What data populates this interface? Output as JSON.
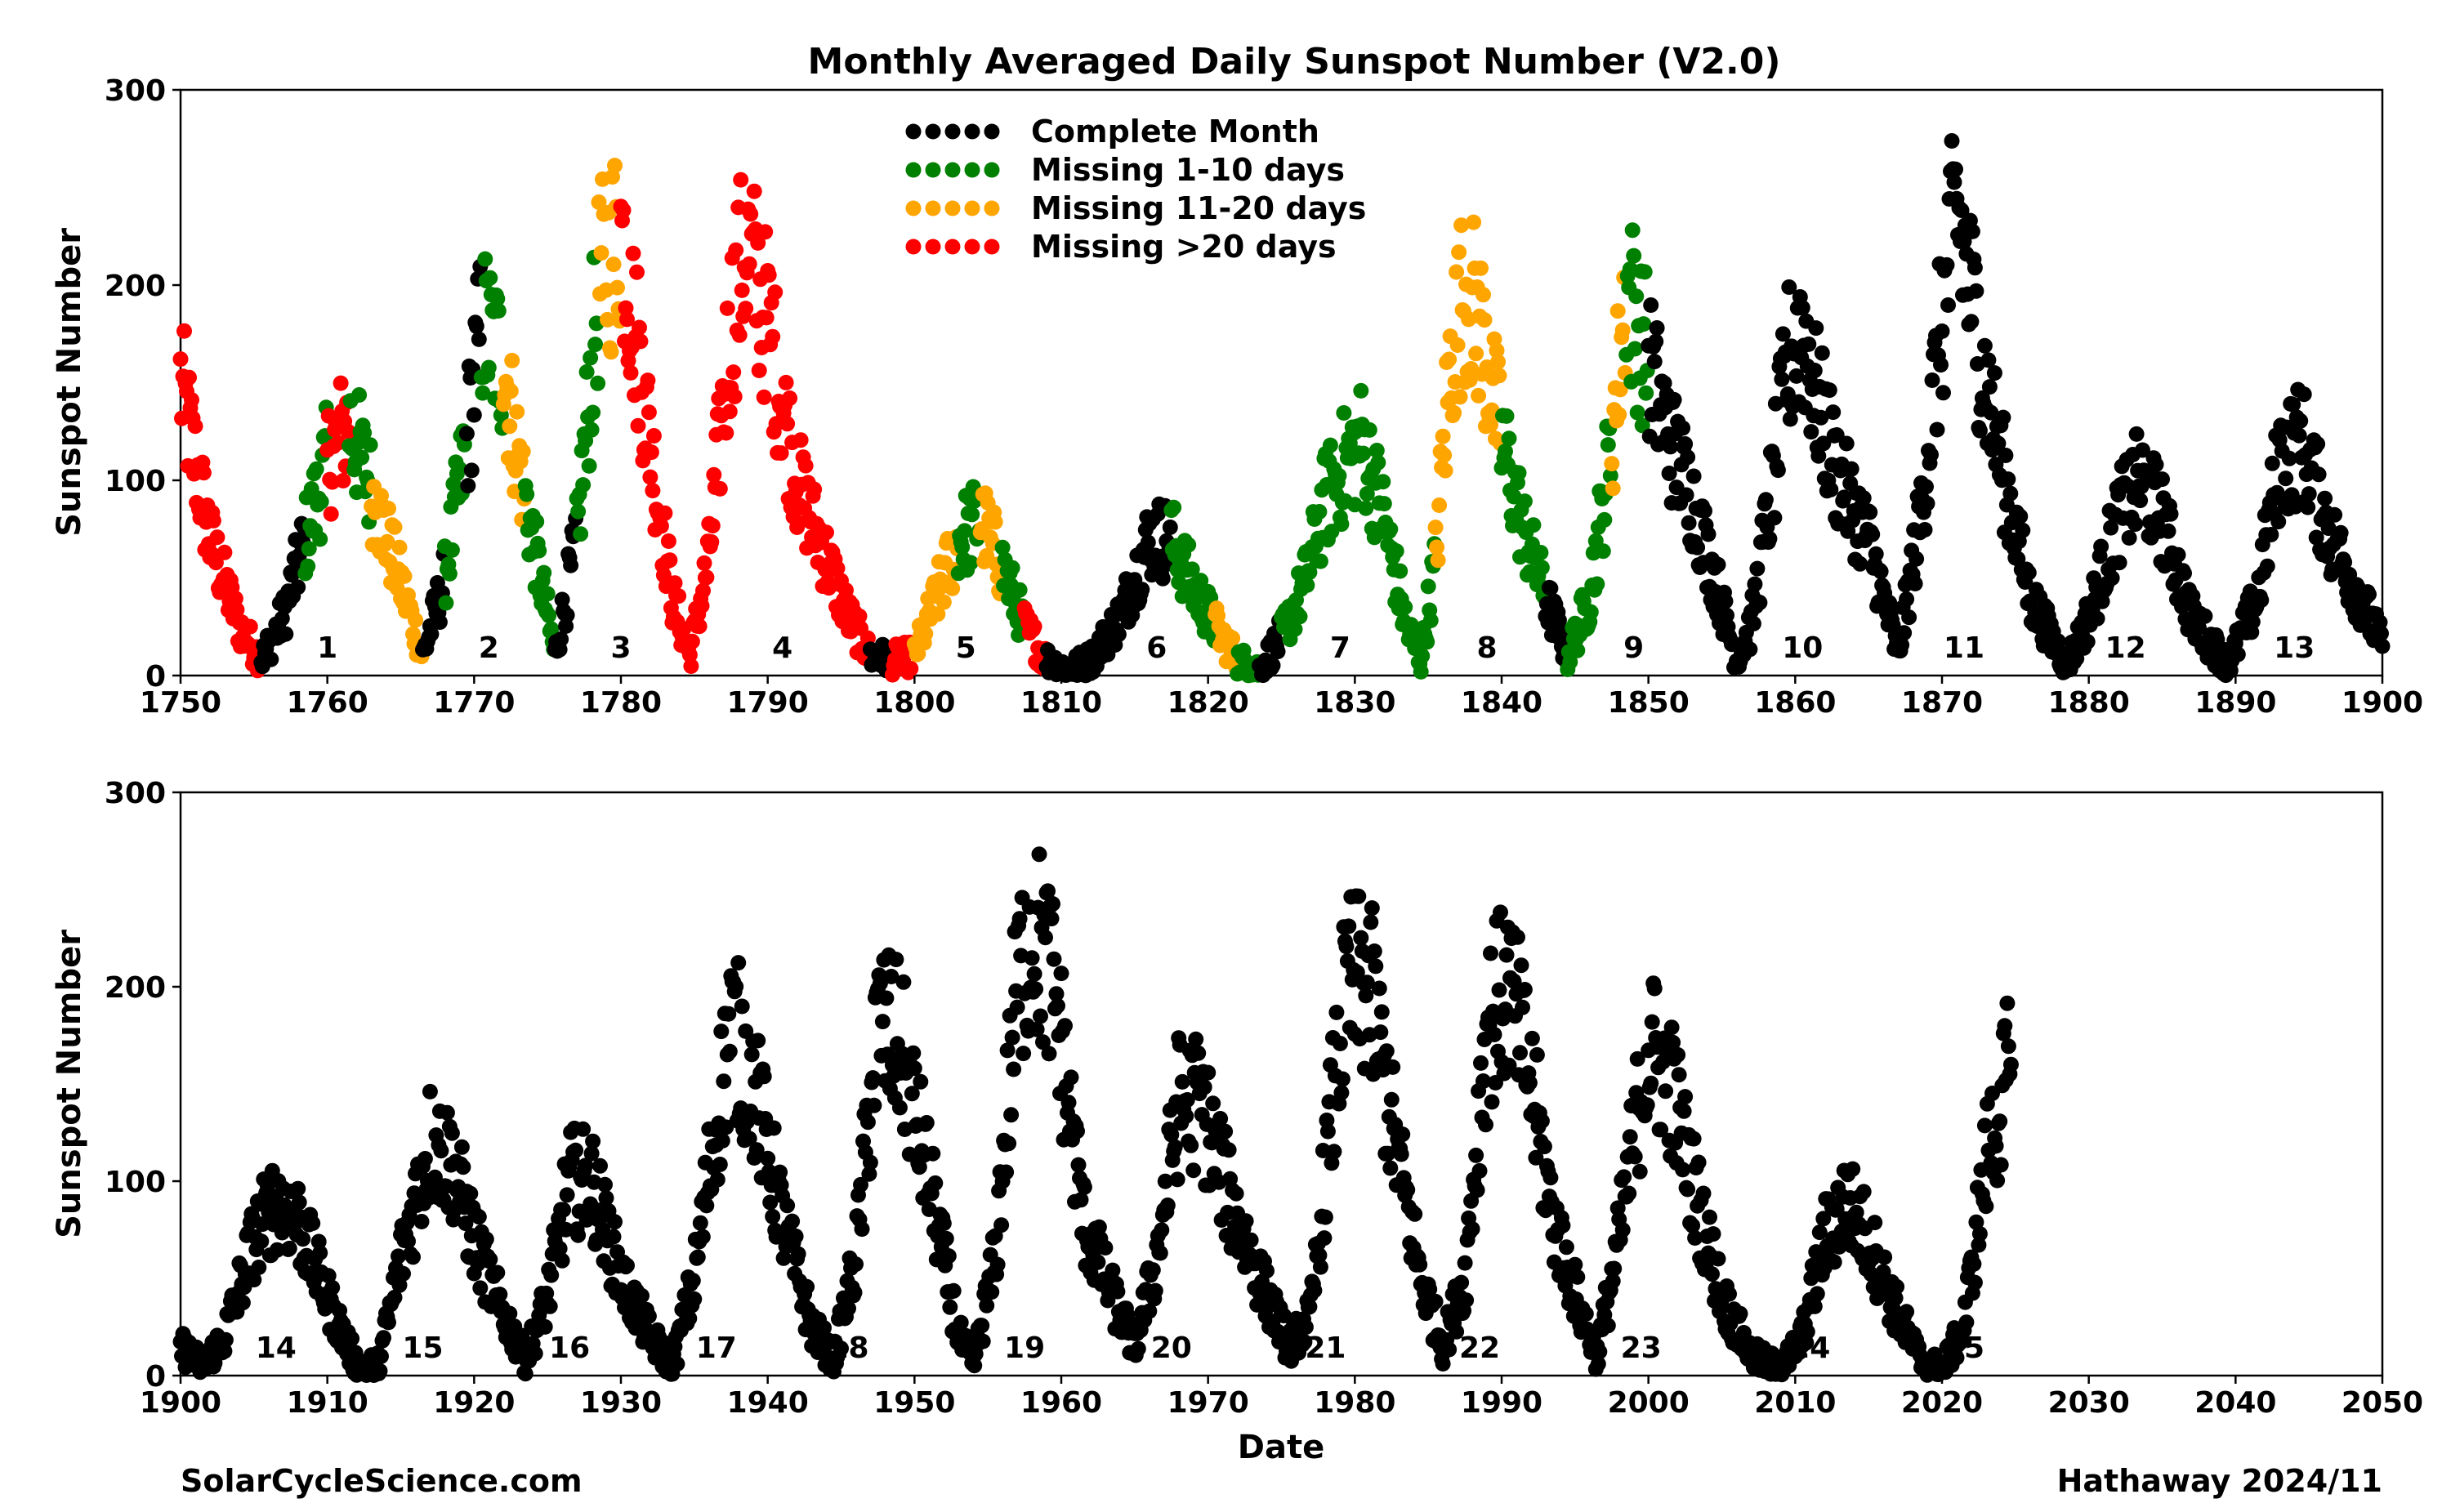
{
  "chart_data": [
    {
      "type": "scatter",
      "title": "Monthly Averaged Daily Sunspot Number (V2.0)",
      "xlabel": "",
      "ylabel": "Sunspot Number",
      "xlim": [
        1750,
        1900
      ],
      "ylim": [
        0,
        300
      ],
      "xticks": [
        "1750",
        "1760",
        "1770",
        "1780",
        "1790",
        "1800",
        "1810",
        "1820",
        "1830",
        "1840",
        "1850",
        "1860",
        "1870",
        "1880",
        "1890",
        "1900"
      ],
      "yticks": [
        "0",
        "100",
        "200",
        "300"
      ],
      "legend_position": "top-center",
      "grid": false,
      "legend": [
        {
          "label": "Complete Month",
          "color": "#000000"
        },
        {
          "label": "Missing 1-10 days",
          "color": "#008000"
        },
        {
          "label": "Missing 11-20 days",
          "color": "#ffa500"
        },
        {
          "label": "Missing >20 days",
          "color": "#ff0000"
        }
      ],
      "cycle_labels": [
        {
          "label": "1",
          "x": 1760
        },
        {
          "label": "2",
          "x": 1771
        },
        {
          "label": "3",
          "x": 1780
        },
        {
          "label": "4",
          "x": 1791
        },
        {
          "label": "5",
          "x": 1803.5
        },
        {
          "label": "6",
          "x": 1816.5
        },
        {
          "label": "7",
          "x": 1829
        },
        {
          "label": "8",
          "x": 1839
        },
        {
          "label": "9",
          "x": 1849
        },
        {
          "label": "10",
          "x": 1860.5
        },
        {
          "label": "11",
          "x": 1871.5
        },
        {
          "label": "12",
          "x": 1882.5
        },
        {
          "label": "13",
          "x": 1894
        }
      ],
      "cycle_anchors": [
        [
          1750.0,
          150,
          "r"
        ],
        [
          1752.0,
          70,
          "r"
        ],
        [
          1754.0,
          25,
          "r"
        ],
        [
          1755.5,
          8,
          "k"
        ],
        [
          1757.0,
          30,
          "k"
        ],
        [
          1758.5,
          70,
          "g"
        ],
        [
          1760.0,
          110,
          "r"
        ],
        [
          1761.5,
          130,
          "g"
        ],
        [
          1763.0,
          95,
          "o"
        ],
        [
          1764.5,
          60,
          "o"
        ],
        [
          1766.5,
          10,
          "k"
        ],
        [
          1768.0,
          50,
          "g"
        ],
        [
          1769.5,
          120,
          "k"
        ],
        [
          1770.5,
          180,
          "g"
        ],
        [
          1772.0,
          160,
          "o"
        ],
        [
          1773.5,
          90,
          "g"
        ],
        [
          1775.5,
          10,
          "k"
        ],
        [
          1777.0,
          70,
          "g"
        ],
        [
          1778.5,
          200,
          "o"
        ],
        [
          1780.0,
          230,
          "r"
        ],
        [
          1782.0,
          120,
          "r"
        ],
        [
          1783.5,
          40,
          "r"
        ],
        [
          1784.7,
          10,
          "r"
        ],
        [
          1786.0,
          60,
          "r"
        ],
        [
          1787.5,
          180,
          "r"
        ],
        [
          1788.5,
          220,
          "r"
        ],
        [
          1790.0,
          180,
          "r"
        ],
        [
          1792.0,
          100,
          "r"
        ],
        [
          1794.0,
          60,
          "r"
        ],
        [
          1795.5,
          30,
          "r"
        ],
        [
          1797.0,
          10,
          "k"
        ],
        [
          1798.5,
          8,
          "r"
        ],
        [
          1800.0,
          10,
          "o"
        ],
        [
          1801.5,
          40,
          "o"
        ],
        [
          1803.0,
          70,
          "g"
        ],
        [
          1804.5,
          80,
          "o"
        ],
        [
          1806.0,
          55,
          "g"
        ],
        [
          1807.5,
          25,
          "r"
        ],
        [
          1809.0,
          8,
          "k"
        ],
        [
          1810.5,
          3,
          "k"
        ],
        [
          1812.0,
          8,
          "k"
        ],
        [
          1814.0,
          30,
          "k"
        ],
        [
          1816.0,
          70,
          "k"
        ],
        [
          1817.5,
          70,
          "g"
        ],
        [
          1819.0,
          45,
          "g"
        ],
        [
          1820.5,
          25,
          "o"
        ],
        [
          1822.0,
          8,
          "g"
        ],
        [
          1823.5,
          3,
          "k"
        ],
        [
          1825.0,
          20,
          "g"
        ],
        [
          1826.5,
          45,
          "g"
        ],
        [
          1828.0,
          90,
          "g"
        ],
        [
          1829.5,
          110,
          "g"
        ],
        [
          1830.5,
          120,
          "g"
        ],
        [
          1832.0,
          80,
          "g"
        ],
        [
          1833.5,
          25,
          "g"
        ],
        [
          1834.5,
          8,
          "g"
        ],
        [
          1835.5,
          60,
          "o"
        ],
        [
          1836.5,
          160,
          "o"
        ],
        [
          1837.5,
          200,
          "o"
        ],
        [
          1838.5,
          180,
          "o"
        ],
        [
          1840.0,
          120,
          "g"
        ],
        [
          1841.5,
          75,
          "g"
        ],
        [
          1843.0,
          40,
          "k"
        ],
        [
          1844.5,
          10,
          "g"
        ],
        [
          1846.0,
          40,
          "g"
        ],
        [
          1847.5,
          120,
          "o"
        ],
        [
          1848.5,
          200,
          "g"
        ],
        [
          1850.0,
          160,
          "k"
        ],
        [
          1851.5,
          120,
          "k"
        ],
        [
          1853.0,
          90,
          "k"
        ],
        [
          1854.5,
          50,
          "k"
        ],
        [
          1856.0,
          8,
          "k"
        ],
        [
          1857.0,
          25,
          "k"
        ],
        [
          1858.5,
          100,
          "k"
        ],
        [
          1859.5,
          160,
          "k"
        ],
        [
          1860.5,
          180,
          "k"
        ],
        [
          1861.5,
          140,
          "k"
        ],
        [
          1863.0,
          100,
          "k"
        ],
        [
          1865.0,
          70,
          "k"
        ],
        [
          1867.0,
          10,
          "k"
        ],
        [
          1868.5,
          80,
          "k"
        ],
        [
          1870.0,
          180,
          "k"
        ],
        [
          1871.0,
          240,
          "k"
        ],
        [
          1872.5,
          170,
          "k"
        ],
        [
          1874.0,
          110,
          "k"
        ],
        [
          1876.0,
          40,
          "k"
        ],
        [
          1878.5,
          5,
          "k"
        ],
        [
          1880.0,
          30,
          "k"
        ],
        [
          1882.0,
          80,
          "k"
        ],
        [
          1883.5,
          100,
          "k"
        ],
        [
          1885.0,
          80,
          "k"
        ],
        [
          1887.0,
          30,
          "k"
        ],
        [
          1889.5,
          5,
          "k"
        ],
        [
          1891.5,
          40,
          "k"
        ],
        [
          1893.0,
          110,
          "k"
        ],
        [
          1894.5,
          120,
          "k"
        ],
        [
          1896.5,
          70,
          "k"
        ],
        [
          1898.5,
          40,
          "k"
        ],
        [
          1900.0,
          15,
          "k"
        ]
      ]
    },
    {
      "type": "scatter",
      "title": "",
      "xlabel": "Date",
      "ylabel": "Sunspot Number",
      "xlim": [
        1900,
        2050
      ],
      "ylim": [
        0,
        300
      ],
      "xticks": [
        "1900",
        "1910",
        "1920",
        "1930",
        "1940",
        "1950",
        "1960",
        "1970",
        "1980",
        "1990",
        "2000",
        "2010",
        "2020",
        "2030",
        "2040",
        "2050"
      ],
      "yticks": [
        "0",
        "100",
        "200",
        "300"
      ],
      "grid": false,
      "cycle_labels": [
        {
          "label": "14",
          "x": 1906.5
        },
        {
          "label": "15",
          "x": 1916.5
        },
        {
          "label": "16",
          "x": 1926.5
        },
        {
          "label": "17",
          "x": 1936.5
        },
        {
          "label": "18",
          "x": 1945.5
        },
        {
          "label": "19",
          "x": 1957.5
        },
        {
          "label": "20",
          "x": 1967.5
        },
        {
          "label": "21",
          "x": 1978
        },
        {
          "label": "22",
          "x": 1988.5
        },
        {
          "label": "23",
          "x": 1999.5
        },
        {
          "label": "24",
          "x": 2011
        },
        {
          "label": "25",
          "x": 2021.5
        }
      ],
      "cycle_anchors": [
        [
          1900.0,
          15,
          "k"
        ],
        [
          1901.5,
          5,
          "k"
        ],
        [
          1903.0,
          20,
          "k"
        ],
        [
          1905.0,
          70,
          "k"
        ],
        [
          1906.5,
          90,
          "k"
        ],
        [
          1908.0,
          80,
          "k"
        ],
        [
          1910.0,
          40,
          "k"
        ],
        [
          1912.0,
          5,
          "k"
        ],
        [
          1913.5,
          5,
          "k"
        ],
        [
          1915.0,
          60,
          "k"
        ],
        [
          1917.0,
          120,
          "k"
        ],
        [
          1918.5,
          110,
          "k"
        ],
        [
          1920.0,
          70,
          "k"
        ],
        [
          1921.5,
          40,
          "k"
        ],
        [
          1923.5,
          8,
          "k"
        ],
        [
          1925.0,
          40,
          "k"
        ],
        [
          1926.5,
          100,
          "k"
        ],
        [
          1928.0,
          100,
          "k"
        ],
        [
          1930.0,
          50,
          "k"
        ],
        [
          1932.0,
          20,
          "k"
        ],
        [
          1933.5,
          5,
          "k"
        ],
        [
          1935.0,
          50,
          "k"
        ],
        [
          1936.5,
          130,
          "k"
        ],
        [
          1937.5,
          180,
          "k"
        ],
        [
          1939.0,
          150,
          "k"
        ],
        [
          1941.0,
          80,
          "k"
        ],
        [
          1943.0,
          25,
          "k"
        ],
        [
          1944.5,
          8,
          "k"
        ],
        [
          1946.0,
          60,
          "k"
        ],
        [
          1947.5,
          180,
          "k"
        ],
        [
          1949.0,
          170,
          "k"
        ],
        [
          1951.0,
          100,
          "k"
        ],
        [
          1953.0,
          20,
          "k"
        ],
        [
          1954.0,
          5,
          "k"
        ],
        [
          1955.5,
          60,
          "k"
        ],
        [
          1957.0,
          200,
          "k"
        ],
        [
          1958.0,
          230,
          "k"
        ],
        [
          1959.5,
          200,
          "k"
        ],
        [
          1961.5,
          80,
          "k"
        ],
        [
          1963.5,
          40,
          "k"
        ],
        [
          1965.0,
          15,
          "k"
        ],
        [
          1966.5,
          60,
          "k"
        ],
        [
          1968.0,
          140,
          "k"
        ],
        [
          1969.5,
          140,
          "k"
        ],
        [
          1971.5,
          90,
          "k"
        ],
        [
          1973.5,
          50,
          "k"
        ],
        [
          1975.5,
          15,
          "k"
        ],
        [
          1977.0,
          30,
          "k"
        ],
        [
          1978.5,
          140,
          "k"
        ],
        [
          1979.5,
          200,
          "k"
        ],
        [
          1981.0,
          200,
          "k"
        ],
        [
          1982.5,
          130,
          "k"
        ],
        [
          1984.5,
          50,
          "k"
        ],
        [
          1986.0,
          15,
          "k"
        ],
        [
          1987.5,
          50,
          "k"
        ],
        [
          1989.0,
          180,
          "k"
        ],
        [
          1990.5,
          200,
          "k"
        ],
        [
          1992.0,
          150,
          "k"
        ],
        [
          1993.5,
          80,
          "k"
        ],
        [
          1995.5,
          30,
          "k"
        ],
        [
          1996.5,
          10,
          "k"
        ],
        [
          1998.0,
          70,
          "k"
        ],
        [
          2000.0,
          170,
          "k"
        ],
        [
          2001.5,
          150,
          "k"
        ],
        [
          2003.0,
          100,
          "k"
        ],
        [
          2005.0,
          40,
          "k"
        ],
        [
          2007.0,
          10,
          "k"
        ],
        [
          2009.0,
          3,
          "k"
        ],
        [
          2010.5,
          20,
          "k"
        ],
        [
          2012.0,
          70,
          "k"
        ],
        [
          2013.5,
          90,
          "k"
        ],
        [
          2015.0,
          70,
          "k"
        ],
        [
          2016.5,
          40,
          "k"
        ],
        [
          2018.5,
          8,
          "k"
        ],
        [
          2020.0,
          3,
          "k"
        ],
        [
          2021.5,
          25,
          "k"
        ],
        [
          2023.0,
          110,
          "k"
        ],
        [
          2024.7,
          160,
          "k"
        ]
      ]
    }
  ],
  "footer": {
    "left": "SolarCycleScience.com",
    "right": "Hathaway 2024/11"
  },
  "colors": {
    "complete": "#000000",
    "missing_1_10": "#008000",
    "missing_11_20": "#ffa500",
    "missing_20_plus": "#ff0000"
  }
}
